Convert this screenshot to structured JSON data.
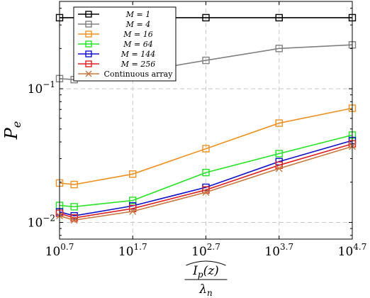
{
  "chart_data": {
    "type": "line",
    "xscale": "log",
    "yscale": "log",
    "xlim_exp": [
      0.7,
      4.7
    ],
    "ylim": [
      0.0075,
      0.45
    ],
    "grid": true,
    "legend_position": "top-left",
    "xticks": [
      {
        "base": "10",
        "exp": "0.7",
        "value": 0.7
      },
      {
        "base": "10",
        "exp": "1.7",
        "value": 1.7
      },
      {
        "base": "10",
        "exp": "2.7",
        "value": 2.7
      },
      {
        "base": "10",
        "exp": "3.7",
        "value": 3.7
      },
      {
        "base": "10",
        "exp": "4.7",
        "value": 4.7
      }
    ],
    "yticks": [
      {
        "base": "10",
        "exp": "−1",
        "value": 0.1
      },
      {
        "base": "10",
        "exp": "−2",
        "value": 0.01
      }
    ],
    "ylabel_main": "P",
    "ylabel_sub": "e",
    "xlabel_num_main": "I",
    "xlabel_num_sub": "p",
    "xlabel_num_arg": "(z)",
    "xlabel_den_main": "λ",
    "xlabel_den_sub": "n",
    "series": [
      {
        "name": "M = 1",
        "color": "#000000",
        "marker": "square",
        "x": [
          0.7,
          1.7,
          2.7,
          3.7,
          4.7
        ],
        "y": [
          0.34,
          0.34,
          0.34,
          0.34,
          0.34
        ]
      },
      {
        "name": "M = 4",
        "color": "#808080",
        "marker": "square",
        "x": [
          0.7,
          0.9,
          1.7,
          2.7,
          3.7,
          4.7
        ],
        "y": [
          0.119,
          0.117,
          0.132,
          0.163,
          0.2,
          0.213
        ]
      },
      {
        "name": "M = 16",
        "color": "#f0901e",
        "marker": "square",
        "x": [
          0.7,
          0.9,
          1.7,
          2.7,
          3.7,
          4.7
        ],
        "y": [
          0.0197,
          0.0192,
          0.023,
          0.0356,
          0.0553,
          0.0715
        ]
      },
      {
        "name": "M = 64",
        "color": "#22e522",
        "marker": "square",
        "x": [
          0.7,
          0.9,
          1.7,
          2.7,
          3.7,
          4.7
        ],
        "y": [
          0.0134,
          0.0131,
          0.0146,
          0.0236,
          0.0327,
          0.045
        ]
      },
      {
        "name": "M = 144",
        "color": "#1010cc",
        "marker": "square",
        "x": [
          0.7,
          0.9,
          1.7,
          2.7,
          3.7,
          4.7
        ],
        "y": [
          0.012,
          0.0112,
          0.0133,
          0.0183,
          0.0285,
          0.041
        ]
      },
      {
        "name": "M = 256",
        "color": "#e02020",
        "marker": "square",
        "x": [
          0.7,
          0.9,
          1.7,
          2.7,
          3.7,
          4.7
        ],
        "y": [
          0.0117,
          0.0108,
          0.0127,
          0.0175,
          0.0268,
          0.0387
        ]
      },
      {
        "name": "Continuous array",
        "color": "#c8783c",
        "marker": "x",
        "x": [
          0.7,
          0.9,
          1.7,
          2.7,
          3.7,
          4.7
        ],
        "y": [
          0.0112,
          0.0104,
          0.0121,
          0.0168,
          0.0253,
          0.037
        ]
      }
    ]
  }
}
